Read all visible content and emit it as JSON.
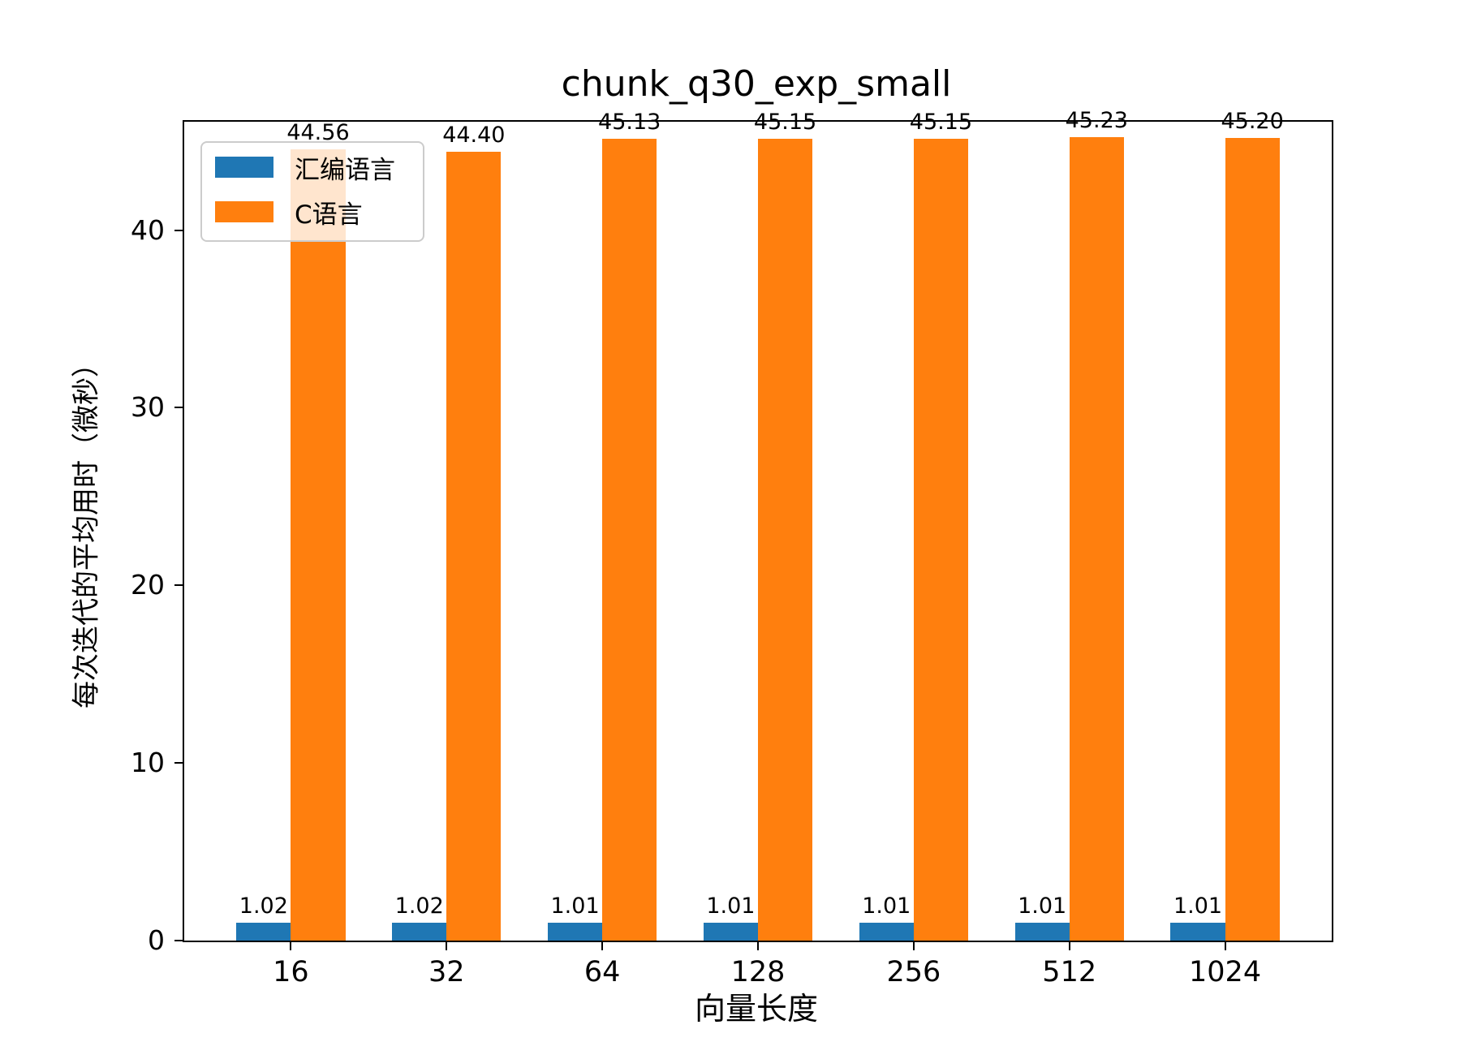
{
  "chart_data": {
    "type": "bar",
    "title": "chunk_q30_exp_small",
    "xlabel": "向量长度",
    "ylabel": "每次迭代的平均用时（微秒）",
    "categories": [
      "16",
      "32",
      "64",
      "128",
      "256",
      "512",
      "1024"
    ],
    "series": [
      {
        "name": "汇编语言",
        "color": "#1f77b4",
        "values": [
          1.02,
          1.02,
          1.01,
          1.01,
          1.01,
          1.01,
          1.01
        ],
        "labels": [
          "1.02",
          "1.02",
          "1.01",
          "1.01",
          "1.01",
          "1.01",
          "1.01"
        ]
      },
      {
        "name": "C语言",
        "color": "#ff7f0e",
        "values": [
          44.56,
          44.4,
          45.13,
          45.15,
          45.15,
          45.23,
          45.2
        ],
        "labels": [
          "44.56",
          "44.40",
          "45.13",
          "45.15",
          "45.15",
          "45.23",
          "45.20"
        ]
      }
    ],
    "yticks": [
      0,
      10,
      20,
      30,
      40
    ],
    "ylim": [
      0,
      46.1
    ],
    "xlim": [
      -0.685,
      6.685
    ],
    "bar_width": 0.35,
    "grid": false,
    "legend_position": "upper-left"
  }
}
